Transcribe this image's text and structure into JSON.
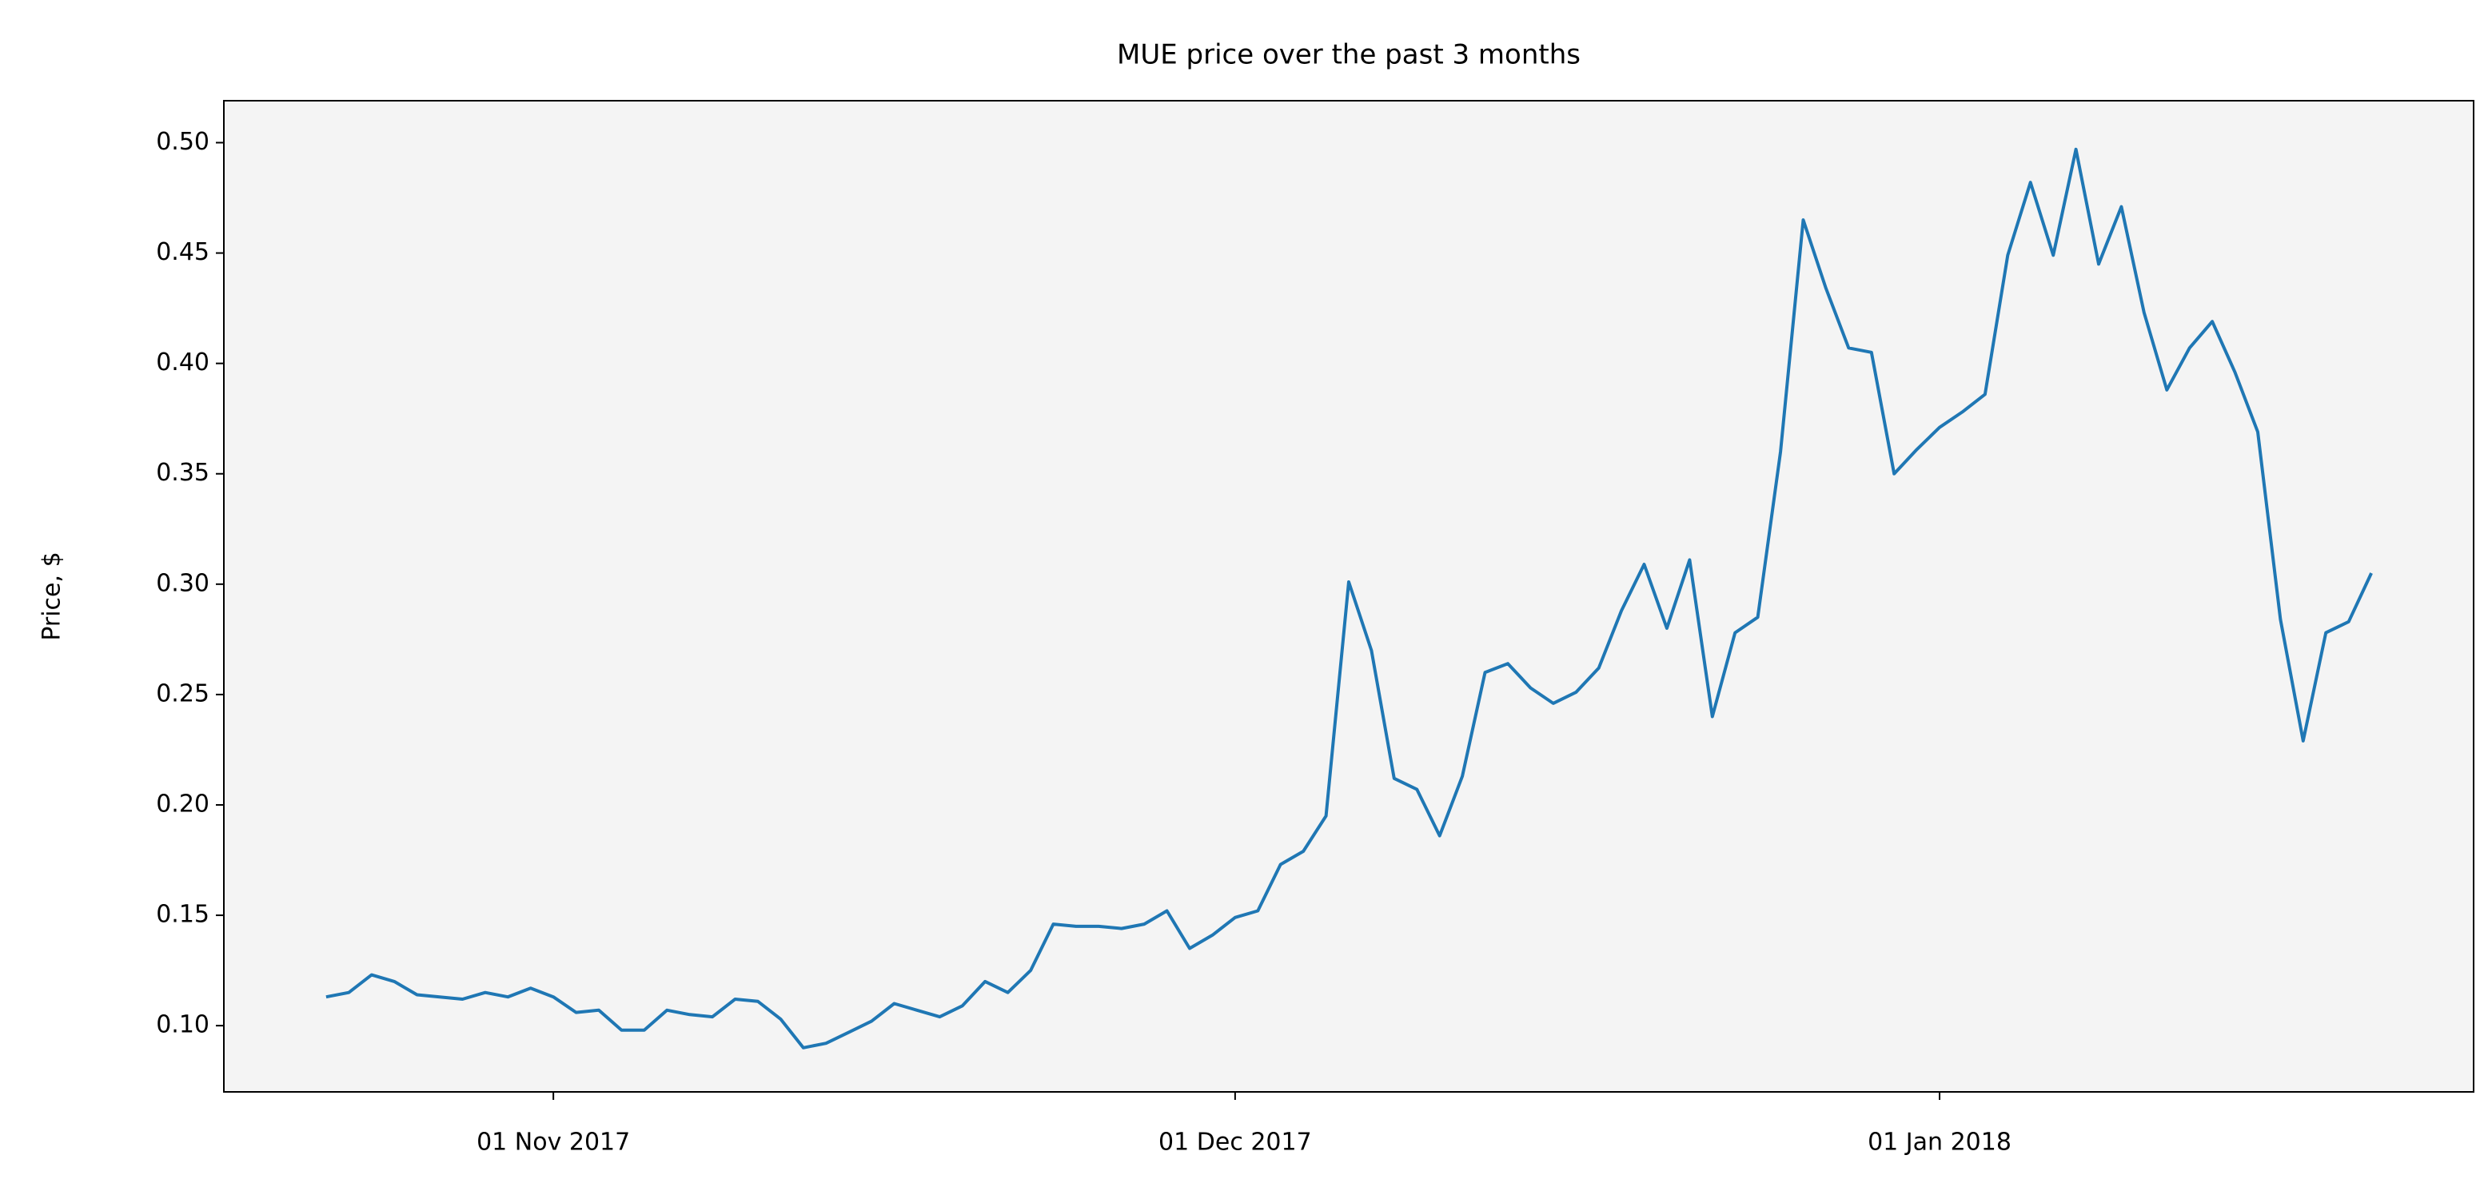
{
  "chart_data": {
    "type": "line",
    "title": "MUE price over the past 3 months",
    "ylabel": "Price, $",
    "x": [
      "2017-10-22",
      "2017-10-23",
      "2017-10-24",
      "2017-10-25",
      "2017-10-26",
      "2017-10-27",
      "2017-10-28",
      "2017-10-29",
      "2017-10-30",
      "2017-10-31",
      "2017-11-01",
      "2017-11-02",
      "2017-11-03",
      "2017-11-04",
      "2017-11-05",
      "2017-11-06",
      "2017-11-07",
      "2017-11-08",
      "2017-11-09",
      "2017-11-10",
      "2017-11-11",
      "2017-11-12",
      "2017-11-13",
      "2017-11-14",
      "2017-11-15",
      "2017-11-16",
      "2017-11-17",
      "2017-11-18",
      "2017-11-19",
      "2017-11-20",
      "2017-11-21",
      "2017-11-22",
      "2017-11-23",
      "2017-11-24",
      "2017-11-25",
      "2017-11-26",
      "2017-11-27",
      "2017-11-28",
      "2017-11-29",
      "2017-11-30",
      "2017-12-01",
      "2017-12-02",
      "2017-12-03",
      "2017-12-04",
      "2017-12-05",
      "2017-12-06",
      "2017-12-07",
      "2017-12-08",
      "2017-12-09",
      "2017-12-10",
      "2017-12-11",
      "2017-12-12",
      "2017-12-13",
      "2017-12-14",
      "2017-12-15",
      "2017-12-16",
      "2017-12-17",
      "2017-12-18",
      "2017-12-19",
      "2017-12-20",
      "2017-12-21",
      "2017-12-22",
      "2017-12-23",
      "2017-12-24",
      "2017-12-25",
      "2017-12-26",
      "2017-12-27",
      "2017-12-28",
      "2017-12-29",
      "2017-12-30",
      "2017-12-31",
      "2018-01-01",
      "2018-01-02",
      "2018-01-03",
      "2018-01-04",
      "2018-01-05",
      "2018-01-06",
      "2018-01-07",
      "2018-01-08",
      "2018-01-09",
      "2018-01-10",
      "2018-01-11",
      "2018-01-12",
      "2018-01-13",
      "2018-01-14",
      "2018-01-15",
      "2018-01-16",
      "2018-01-17",
      "2018-01-18",
      "2018-01-19",
      "2018-01-20"
    ],
    "series": [
      {
        "color": "#1f77b4",
        "values": [
          0.113,
          0.115,
          0.123,
          0.12,
          0.114,
          0.113,
          0.112,
          0.115,
          0.113,
          0.117,
          0.113,
          0.106,
          0.107,
          0.098,
          0.098,
          0.107,
          0.105,
          0.104,
          0.112,
          0.111,
          0.103,
          0.09,
          0.092,
          0.097,
          0.102,
          0.11,
          0.107,
          0.104,
          0.109,
          0.12,
          0.115,
          0.125,
          0.146,
          0.145,
          0.145,
          0.144,
          0.146,
          0.152,
          0.135,
          0.141,
          0.149,
          0.152,
          0.173,
          0.179,
          0.195,
          0.301,
          0.27,
          0.212,
          0.207,
          0.186,
          0.213,
          0.26,
          0.264,
          0.253,
          0.246,
          0.251,
          0.262,
          0.288,
          0.309,
          0.28,
          0.311,
          0.24,
          0.278,
          0.285,
          0.36,
          0.465,
          0.434,
          0.407,
          0.405,
          0.35,
          0.361,
          0.371,
          0.378,
          0.386,
          0.449,
          0.482,
          0.449,
          0.497,
          0.445,
          0.471,
          0.423,
          0.388,
          0.407,
          0.419,
          0.396,
          0.369,
          0.284,
          0.229,
          0.278,
          0.283,
          0.305
        ]
      }
    ],
    "xlim": [
      "2017-10-17T12:00:00Z",
      "2018-01-24T12:00:00Z"
    ],
    "xticks": [
      {
        "value": "2017-11-01",
        "label": "01 Nov 2017"
      },
      {
        "value": "2017-12-01",
        "label": "01 Dec 2017"
      },
      {
        "value": "2018-01-01",
        "label": "01 Jan 2018"
      }
    ],
    "ylim": [
      0.07,
      0.519
    ],
    "yticks": [
      {
        "value": 0.1,
        "label": "0.10"
      },
      0.15,
      {
        "value": 0.2,
        "label": "0.20"
      },
      0.25,
      {
        "value": 0.3,
        "label": "0.30"
      },
      0.35,
      {
        "value": 0.4,
        "label": "0.40"
      },
      0.45,
      {
        "value": 0.5,
        "label": "0.50"
      }
    ],
    "grid": false,
    "background": "#f4f4f4"
  }
}
